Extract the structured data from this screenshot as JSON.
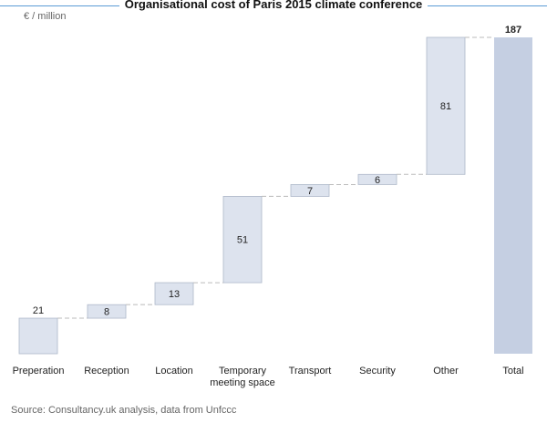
{
  "chart_data": {
    "type": "bar",
    "subtype": "waterfall",
    "title": "Organisational cost of Paris 2015 climate conference",
    "unit_label": "€ / million",
    "categories": [
      "Preperation",
      "Reception",
      "Location",
      "Temporary meeting space",
      "Transport",
      "Security",
      "Other",
      "Total"
    ],
    "category_lines": [
      [
        "Preperation"
      ],
      [
        "Reception"
      ],
      [
        "Location"
      ],
      [
        "Temporary",
        "meeting space"
      ],
      [
        "Transport"
      ],
      [
        "Security"
      ],
      [
        "Other"
      ],
      [
        "Total"
      ]
    ],
    "values": [
      21,
      8,
      13,
      51,
      7,
      6,
      81,
      187
    ],
    "value_labels": [
      "21",
      "8",
      "13",
      "51",
      "7",
      "6",
      "81",
      "187"
    ],
    "total_index": 7,
    "ylim": [
      0,
      187
    ],
    "grid": false,
    "connector_lines": true,
    "colors": {
      "increment_fill": "#dde3ee",
      "increment_stroke": "#aeb8c9",
      "total_fill": "#c5cfe2",
      "connector": "#bbbbbb",
      "title_rule": "#5b9bd5"
    }
  },
  "source_note": "Source: Consultancy.uk analysis, data from Unfccc"
}
